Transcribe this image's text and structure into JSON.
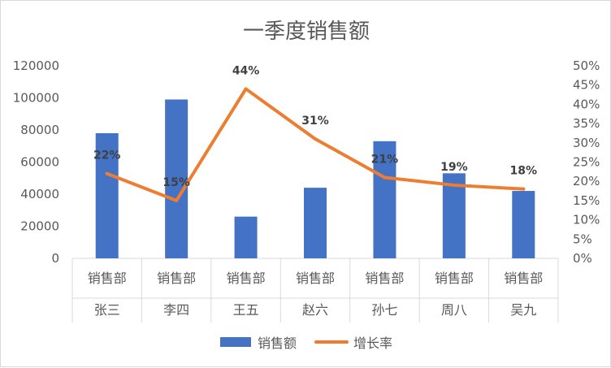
{
  "chart_data": {
    "type": "bar",
    "title": "一季度销售额",
    "groups": [
      "销售部",
      "销售部",
      "销售部",
      "销售部",
      "销售部",
      "销售部",
      "销售部"
    ],
    "categories": [
      "张三",
      "李四",
      "王五",
      "赵六",
      "孙七",
      "周八",
      "吴九"
    ],
    "series": [
      {
        "name": "销售额",
        "type": "bar",
        "axis": "left",
        "color": "#4472C4",
        "values": [
          78000,
          99000,
          26000,
          44000,
          73000,
          53000,
          42000
        ]
      },
      {
        "name": "增长率",
        "type": "line",
        "axis": "right",
        "color": "#ED7D31",
        "values": [
          0.22,
          0.15,
          0.44,
          0.31,
          0.21,
          0.19,
          0.18
        ],
        "data_labels": [
          "22%",
          "15%",
          "44%",
          "31%",
          "21%",
          "19%",
          "18%"
        ]
      }
    ],
    "ylim_left": [
      0,
      120000
    ],
    "yticks_left": [
      "0",
      "20000",
      "40000",
      "60000",
      "80000",
      "100000",
      "120000"
    ],
    "ylim_right": [
      0,
      0.5
    ],
    "yticks_right": [
      "0%",
      "5%",
      "10%",
      "15%",
      "20%",
      "25%",
      "30%",
      "35%",
      "40%",
      "45%",
      "50%"
    ],
    "grid": false,
    "legend_position": "bottom"
  }
}
